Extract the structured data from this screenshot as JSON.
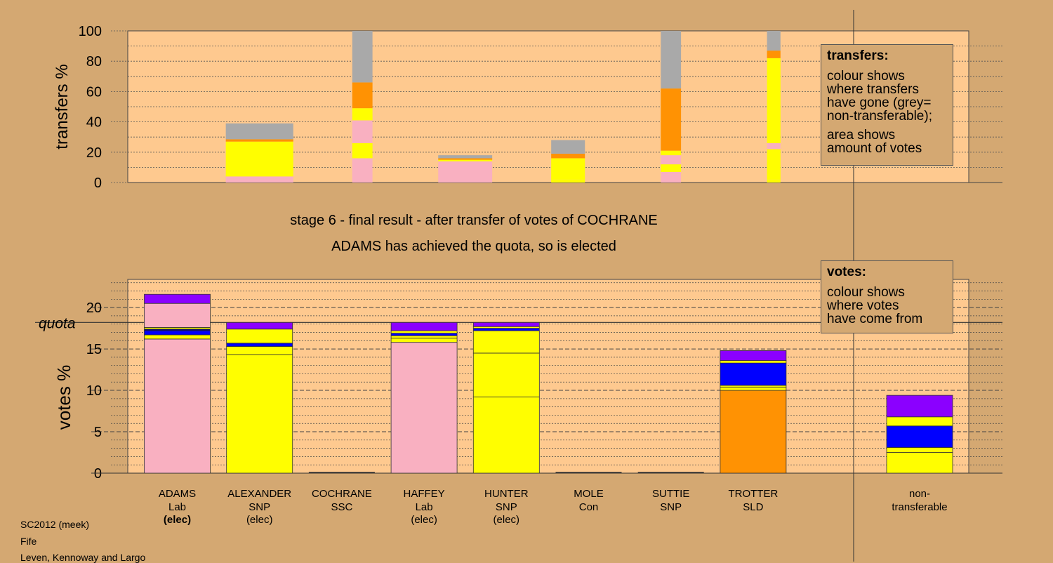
{
  "colors": {
    "background": "#d4a872",
    "plot_background": "#fec98f",
    "pink": "#f9b0c1",
    "yellow": "#fffe00",
    "blue": "#0000ff",
    "orange": "#ff9203",
    "purple": "#8b00ff",
    "grey": "#a9a9a9",
    "dark_blue": "#000080"
  },
  "headings": {
    "stage": "stage 6 - final result - after transfer of votes of COCHRANE",
    "elected": "ADAMS has achieved the quota, so is elected"
  },
  "transfers_legend": {
    "title": "transfers:",
    "lines_a": [
      "colour shows",
      "where transfers",
      "have gone (grey=",
      "non-transferable);"
    ],
    "lines_b": [
      "area shows",
      "amount of votes"
    ]
  },
  "votes_legend": {
    "title": "votes:",
    "lines": [
      "colour shows",
      "where votes",
      "have come from"
    ]
  },
  "footer": [
    "SC2012 (meek)",
    "Fife",
    "Leven, Kennoway and Largo"
  ],
  "chart_data": [
    {
      "type": "bar",
      "title": "transfers",
      "ylabel": "transfers %",
      "ylim": [
        0,
        100
      ],
      "yticks": [
        0,
        20,
        40,
        60,
        80,
        100
      ],
      "bars": [
        {
          "x": 3.5,
          "width": 1.0,
          "segments": [
            {
              "c": "pink",
              "v": 4
            },
            {
              "c": "yellow",
              "v": 23
            },
            {
              "c": "orange",
              "v": 1.5
            },
            {
              "c": "grey",
              "v": 10.5
            }
          ]
        },
        {
          "x": 4.75,
          "width": 0.3,
          "segments": [
            {
              "c": "pink",
              "v": 16
            },
            {
              "c": "yellow",
              "v": 10
            },
            {
              "c": "pink",
              "v": 15
            },
            {
              "c": "yellow",
              "v": 8
            },
            {
              "c": "orange",
              "v": 17
            },
            {
              "c": "grey",
              "v": 34
            }
          ]
        },
        {
          "x": 6.0,
          "width": 0.8,
          "segments": [
            {
              "c": "pink",
              "v": 14
            },
            {
              "c": "yellow",
              "v": 1
            },
            {
              "c": "orange",
              "v": 1
            },
            {
              "c": "grey",
              "v": 2
            }
          ]
        },
        {
          "x": 7.25,
          "width": 0.5,
          "segments": [
            {
              "c": "yellow",
              "v": 2
            },
            {
              "c": "yellow",
              "v": 14
            },
            {
              "c": "orange",
              "v": 3
            },
            {
              "c": "grey",
              "v": 9
            }
          ]
        },
        {
          "x": 8.5,
          "width": 0.3,
          "segments": [
            {
              "c": "pink",
              "v": 7
            },
            {
              "c": "yellow",
              "v": 5
            },
            {
              "c": "pink",
              "v": 6
            },
            {
              "c": "yellow",
              "v": 3
            },
            {
              "c": "orange",
              "v": 41
            },
            {
              "c": "grey",
              "v": 38
            }
          ]
        },
        {
          "x": 9.75,
          "width": 0.2,
          "segments": [
            {
              "c": "yellow",
              "v": 2
            },
            {
              "c": "yellow",
              "v": 20
            },
            {
              "c": "pink",
              "v": 4
            },
            {
              "c": "yellow",
              "v": 56
            },
            {
              "c": "orange",
              "v": 5
            },
            {
              "c": "grey",
              "v": 13
            }
          ]
        }
      ]
    },
    {
      "type": "bar",
      "title": "votes",
      "ylabel": "votes %",
      "ylim": [
        0,
        23.4
      ],
      "yticks": [
        0,
        5,
        10,
        15,
        20
      ],
      "quota": 18.2,
      "quota_label": "quota",
      "categories": [
        {
          "name": "ADAMS",
          "party": "Lab",
          "status": "(elec)"
        },
        {
          "name": "ALEXANDER",
          "party": "SNP",
          "status": "(elec)"
        },
        {
          "name": "COCHRANE",
          "party": "SSC",
          "status": ""
        },
        {
          "name": "HAFFEY",
          "party": "Lab",
          "status": "(elec)"
        },
        {
          "name": "HUNTER",
          "party": "SNP",
          "status": "(elec)"
        },
        {
          "name": "MOLE",
          "party": "Con",
          "status": ""
        },
        {
          "name": "SUTTIE",
          "party": "SNP",
          "status": ""
        },
        {
          "name": "TROTTER",
          "party": "SLD",
          "status": ""
        },
        {
          "name": "non-",
          "party": "transferable",
          "status": ""
        }
      ],
      "stacks": [
        [
          {
            "c": "pink",
            "v": 16.2
          },
          {
            "c": "yellow",
            "v": 0.5
          },
          {
            "c": "blue",
            "v": 0.5
          },
          {
            "c": "dark_blue",
            "v": 0.2
          },
          {
            "c": "yellow",
            "v": 0.2
          },
          {
            "c": "pink",
            "v": 2.9
          },
          {
            "c": "purple",
            "v": 1.1
          }
        ],
        [
          {
            "c": "yellow",
            "v": 14.3
          },
          {
            "c": "yellow",
            "v": 1.0
          },
          {
            "c": "blue",
            "v": 0.4
          },
          {
            "c": "yellow",
            "v": 1.7
          },
          {
            "c": "purple",
            "v": 0.8
          }
        ],
        [],
        [
          {
            "c": "pink",
            "v": 15.8
          },
          {
            "c": "yellow",
            "v": 0.5
          },
          {
            "c": "yellow",
            "v": 0.3
          },
          {
            "c": "blue",
            "v": 0.3
          },
          {
            "c": "yellow",
            "v": 0.3
          },
          {
            "c": "purple",
            "v": 1.0
          }
        ],
        [
          {
            "c": "yellow",
            "v": 9.2
          },
          {
            "c": "yellow",
            "v": 5.3
          },
          {
            "c": "yellow",
            "v": 2.7
          },
          {
            "c": "blue",
            "v": 0.3
          },
          {
            "c": "yellow",
            "v": 0.2
          },
          {
            "c": "purple",
            "v": 0.5
          }
        ],
        [],
        [],
        [
          {
            "c": "orange",
            "v": 10.0
          },
          {
            "c": "yellow",
            "v": 0.4
          },
          {
            "c": "yellow",
            "v": 0.2
          },
          {
            "c": "blue",
            "v": 2.7
          },
          {
            "c": "yellow",
            "v": 0.3
          },
          {
            "c": "purple",
            "v": 1.2
          }
        ],
        [
          {
            "c": "yellow",
            "v": 2.5
          },
          {
            "c": "yellow",
            "v": 0.6
          },
          {
            "c": "blue",
            "v": 2.6
          },
          {
            "c": "yellow",
            "v": 1.1
          },
          {
            "c": "purple",
            "v": 2.6
          }
        ]
      ]
    }
  ]
}
